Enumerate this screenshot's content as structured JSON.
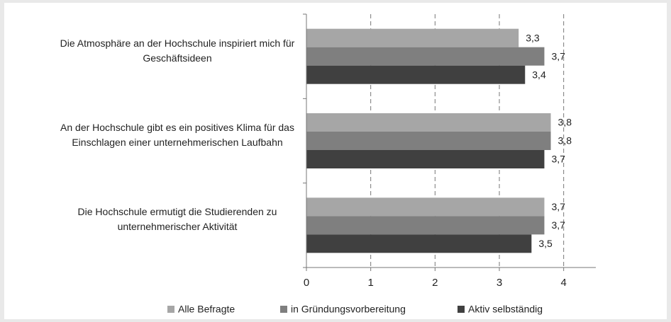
{
  "chart_data": {
    "type": "bar",
    "orientation": "horizontal",
    "categories": [
      "Die Atmosphäre an der Hochschule inspiriert mich für Geschäftsideen",
      "An der Hochschule gibt es ein positives Klima für das Einschlagen einer unternehmerischen Laufbahn",
      "Die Hochschule ermutigt die Studierenden zu unternehmerischer Aktivität"
    ],
    "series": [
      {
        "name": "Alle Befragte",
        "color": "#a6a6a6",
        "values": [
          3.3,
          3.8,
          3.7
        ],
        "value_labels": [
          "3,3",
          "3,8",
          "3,7"
        ]
      },
      {
        "name": "in Gründungsvorbereitung",
        "color": "#7f7f7f",
        "values": [
          3.7,
          3.8,
          3.7
        ],
        "value_labels": [
          "3,7",
          "3,8",
          "3,7"
        ]
      },
      {
        "name": "Aktiv selbständig",
        "color": "#404040",
        "values": [
          3.4,
          3.7,
          3.5
        ],
        "value_labels": [
          "3,4",
          "3,7",
          "3,5"
        ]
      }
    ],
    "xlim": [
      0,
      4.5
    ],
    "xticks": [
      0,
      1,
      2,
      3,
      4
    ],
    "grid": true,
    "legend": "bottom"
  }
}
